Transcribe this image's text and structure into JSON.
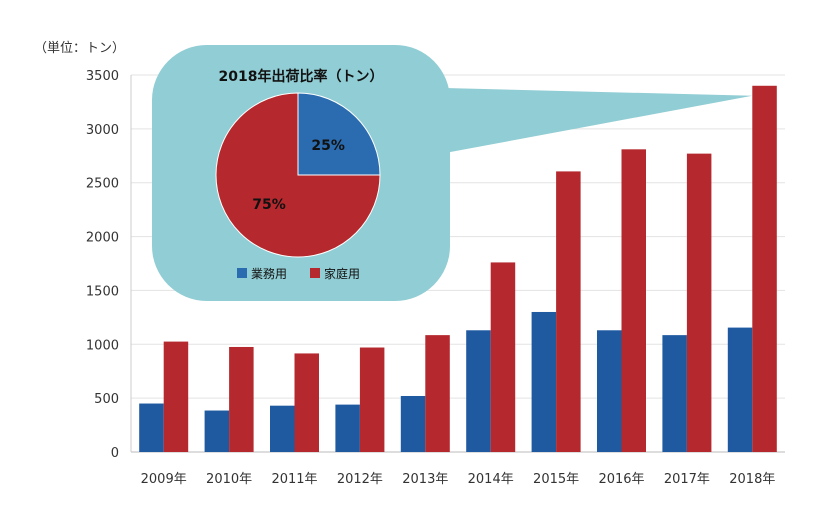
{
  "chart_data": [
    {
      "type": "bar",
      "unit_label": "（単位：トン）",
      "categories": [
        "2009年",
        "2010年",
        "2011年",
        "2012年",
        "2013年",
        "2014年",
        "2015年",
        "2016年",
        "2017年",
        "2018年"
      ],
      "series": [
        {
          "name": "業務用",
          "color": "#1f5aa0",
          "values": [
            450,
            385,
            430,
            440,
            520,
            1130,
            1300,
            1130,
            1085,
            1155
          ]
        },
        {
          "name": "家庭用",
          "color": "#b5282d",
          "values": [
            1025,
            975,
            915,
            970,
            1085,
            1760,
            2605,
            2810,
            2770,
            3400
          ]
        }
      ],
      "ylim": [
        0,
        3500
      ],
      "yticks": [
        0,
        500,
        1000,
        1500,
        2000,
        2500,
        3000,
        3500
      ],
      "grid": true
    },
    {
      "type": "pie",
      "title": "2018年出荷比率（トン）",
      "slices": [
        {
          "name": "業務用",
          "value": 25,
          "label": "25%",
          "color": "#2b6cb0"
        },
        {
          "name": "家庭用",
          "value": 75,
          "label": "75%",
          "color": "#b5282d"
        }
      ],
      "legend": "bottom"
    }
  ],
  "colors": {
    "callout": "#91cdd4"
  }
}
